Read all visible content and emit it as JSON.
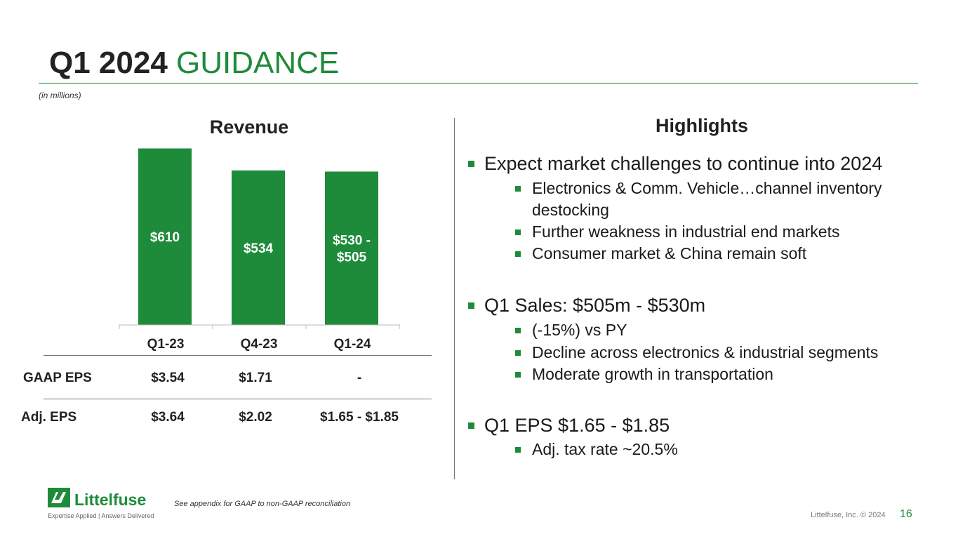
{
  "title": {
    "part1": "Q1 2024 ",
    "part2": "GUIDANCE"
  },
  "units_note": "(in millions)",
  "revenue_title": "Revenue",
  "chart_data": {
    "type": "bar",
    "title": "Revenue",
    "categories": [
      "Q1-23",
      "Q4-23",
      "Q1-24"
    ],
    "values": [
      610,
      534,
      530
    ],
    "value_labels": [
      "$610",
      "$534",
      "$530 - $505"
    ],
    "label_lines": [
      [
        "$610"
      ],
      [
        "$534"
      ],
      [
        "$530 -",
        "$505"
      ]
    ],
    "color": "#1e8b3a",
    "ylim": [
      0,
      650
    ]
  },
  "eps_table": {
    "rows": [
      {
        "label": "GAAP EPS",
        "values": [
          "$3.54",
          "$1.71",
          "-"
        ]
      },
      {
        "label": "Adj. EPS",
        "values": [
          "$3.64",
          "$2.02",
          "$1.65 - $1.85"
        ]
      }
    ]
  },
  "highlights": {
    "title": "Highlights",
    "groups": [
      {
        "main": "Expect market challenges to continue into 2024",
        "subs": [
          "Electronics & Comm. Vehicle…channel inventory",
          "destocking",
          "Further weakness in industrial end markets",
          "Consumer market & China remain soft"
        ]
      },
      {
        "main": "Q1 Sales: $505m - $530m",
        "subs": [
          "(-15%) vs PY",
          "Decline across electronics & industrial segments",
          "Moderate growth in transportation"
        ]
      },
      {
        "main": "Q1 EPS $1.65 - $1.85",
        "subs": [
          "Adj. tax rate ~20.5%"
        ]
      }
    ]
  },
  "footnote": "See appendix for GAAP to non-GAAP reconciliation",
  "copyright": "Littelfuse, Inc. © 2024",
  "page_number": "16",
  "logo": {
    "name": "Littelfuse",
    "tagline": "Expertise Applied | Answers Delivered",
    "icon": "littelfuse-logo-icon"
  },
  "colors": {
    "accent": "#1e8b3a"
  }
}
